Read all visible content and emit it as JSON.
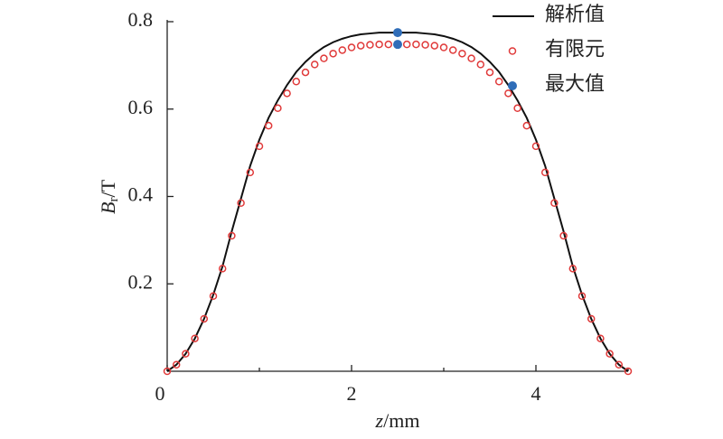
{
  "chart_data": {
    "type": "line",
    "x_label": [
      "z",
      "/mm"
    ],
    "y_label": [
      "B",
      "r",
      "/T"
    ],
    "xlim": [
      0,
      5
    ],
    "xticks": [
      0,
      2,
      4
    ],
    "xminorticks": [
      1,
      3,
      5
    ],
    "ylim": [
      0,
      0.8
    ],
    "yticks": [
      0.2,
      0.4,
      0.6,
      0.8
    ],
    "legend": "upper right",
    "series": [
      {
        "name": "解析值",
        "mark": "line",
        "color": "#111111",
        "x": [
          0,
          0.1,
          0.2,
          0.3,
          0.4,
          0.5,
          0.6,
          0.7,
          0.8,
          0.9,
          1,
          1.1,
          1.2,
          1.3,
          1.4,
          1.5,
          1.6,
          1.7,
          1.8,
          1.9,
          2,
          2.1,
          2.2,
          2.3,
          2.4,
          2.5,
          2.6,
          2.7,
          2.8,
          2.9,
          3,
          3.1,
          3.2,
          3.3,
          3.4,
          3.5,
          3.6,
          3.7,
          3.8,
          3.9,
          4,
          4.1,
          4.2,
          4.3,
          4.4,
          4.5,
          4.6,
          4.7,
          4.8,
          4.9,
          5
        ],
        "values": [
          0,
          0.015,
          0.04,
          0.075,
          0.12,
          0.175,
          0.24,
          0.32,
          0.395,
          0.47,
          0.53,
          0.58,
          0.62,
          0.655,
          0.685,
          0.708,
          0.727,
          0.742,
          0.753,
          0.761,
          0.767,
          0.771,
          0.773,
          0.775,
          0.775,
          0.775,
          0.775,
          0.775,
          0.773,
          0.771,
          0.767,
          0.761,
          0.753,
          0.742,
          0.727,
          0.708,
          0.685,
          0.655,
          0.62,
          0.58,
          0.53,
          0.47,
          0.395,
          0.32,
          0.24,
          0.175,
          0.12,
          0.075,
          0.04,
          0.015,
          0
        ]
      },
      {
        "name": "有限元",
        "mark": "open-circle",
        "color": "#e03a3a",
        "x": [
          0,
          0.1,
          0.2,
          0.3,
          0.4,
          0.5,
          0.6,
          0.7,
          0.8,
          0.9,
          1,
          1.1,
          1.2,
          1.3,
          1.4,
          1.5,
          1.6,
          1.7,
          1.8,
          1.9,
          2,
          2.1,
          2.2,
          2.3,
          2.4,
          2.5,
          2.6,
          2.7,
          2.8,
          2.9,
          3,
          3.1,
          3.2,
          3.3,
          3.4,
          3.5,
          3.6,
          3.7,
          3.8,
          3.9,
          4,
          4.1,
          4.2,
          4.3,
          4.4,
          4.5,
          4.6,
          4.7,
          4.8,
          4.9,
          5
        ],
        "values": [
          0,
          0.015,
          0.04,
          0.075,
          0.12,
          0.172,
          0.235,
          0.31,
          0.385,
          0.455,
          0.515,
          0.562,
          0.602,
          0.636,
          0.663,
          0.684,
          0.702,
          0.716,
          0.727,
          0.735,
          0.741,
          0.745,
          0.747,
          0.748,
          0.748,
          0.748,
          0.748,
          0.748,
          0.747,
          0.745,
          0.741,
          0.735,
          0.727,
          0.716,
          0.702,
          0.684,
          0.663,
          0.636,
          0.602,
          0.562,
          0.515,
          0.455,
          0.385,
          0.31,
          0.235,
          0.172,
          0.12,
          0.075,
          0.04,
          0.015,
          0
        ]
      },
      {
        "name": "最大值",
        "mark": "filled-circle",
        "color": "#2f6db8",
        "x": [
          2.5,
          2.5
        ],
        "values": [
          0.775,
          0.748
        ]
      }
    ]
  }
}
